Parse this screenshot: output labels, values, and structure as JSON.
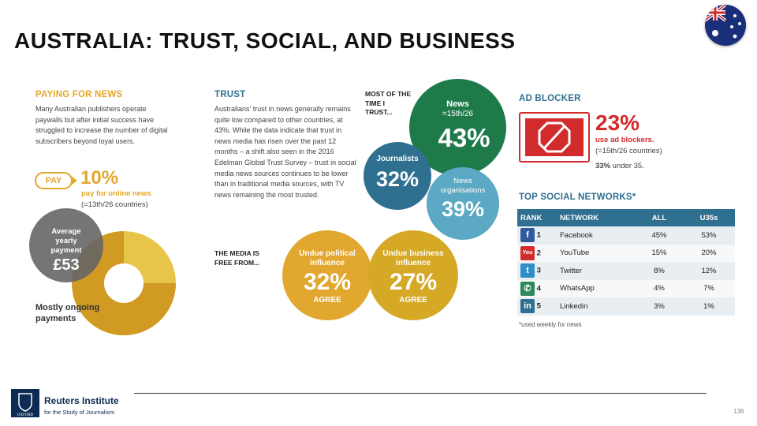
{
  "title": "AUSTRALIA: TRUST, SOCIAL, AND BUSINESS",
  "colors": {
    "gold": "#e2a72e",
    "gold_light": "#e9c44a",
    "green": "#1f7a4a",
    "teal": "#2f6f8f",
    "teal_light": "#5ba9c4",
    "red": "#d12b2b",
    "grey": "#666666"
  },
  "paying": {
    "heading": "PAYING FOR NEWS",
    "body": "Many Australian publishers operate paywalls but after initial success have struggled to increase the number of digital subscribers beyond loyal users.",
    "pay_label": "PAY",
    "pct": "10%",
    "pct_label": "pay for online news",
    "pct_note": "(=13th/26 countries)",
    "avg_label": "Average yearly payment",
    "avg_value": "£53",
    "donut_label": "Mostly ongoing payments",
    "donut_share": 0.75
  },
  "trust": {
    "heading": "TRUST",
    "body": "Australians' trust in news generally remains quite low compared to other countries, at 43%. While the data indicate that trust in news media has risen over the past 12 months – a shift also seen in the 2016 Edelman Global Trust Survey – trust in social media news sources continues to be lower than in traditional media sources, with TV news remaining the most trusted.",
    "most_of_time": "MOST OF THE TIME I TRUST...",
    "news_label": "News",
    "news_rank": "=15th/26",
    "news_pct": "43%",
    "journalists_label": "Journalists",
    "journalists_pct": "32%",
    "orgs_label": "News organisations",
    "orgs_pct": "39%",
    "free_from": "THE MEDIA IS FREE FROM...",
    "political_label": "Undue political influence",
    "political_pct": "32%",
    "business_label": "Undue business influence",
    "business_pct": "27%",
    "agree": "AGREE"
  },
  "adblocker": {
    "heading": "AD BLOCKER",
    "pct": "23%",
    "label": "use ad blockers.",
    "note": "(=15th/26 countries)",
    "under35_value": "33%",
    "under35_text": "under 35."
  },
  "social": {
    "heading": "TOP SOCIAL NETWORKS*",
    "columns": [
      "RANK",
      "NETWORK",
      "ALL",
      "U35s"
    ],
    "rows": [
      {
        "icon": "f",
        "rank": "1",
        "network": "Facebook",
        "all": "45%",
        "u35": "53%"
      },
      {
        "icon": "You",
        "rank": "2",
        "network": "YouTube",
        "all": "15%",
        "u35": "20%"
      },
      {
        "icon": "t",
        "rank": "3",
        "network": "Twitter",
        "all": "8%",
        "u35": "12%"
      },
      {
        "icon": "✆",
        "rank": "4",
        "network": "WhatsApp",
        "all": "4%",
        "u35": "7%"
      },
      {
        "icon": "in",
        "rank": "5",
        "network": "Linkedin",
        "all": "3%",
        "u35": "1%"
      }
    ],
    "footnote": "*used weekly for news"
  },
  "footer": {
    "logo_text": "OXFORD",
    "institute": "Reuters Institute",
    "sub": "for the Study of Journalism",
    "page": "136"
  }
}
